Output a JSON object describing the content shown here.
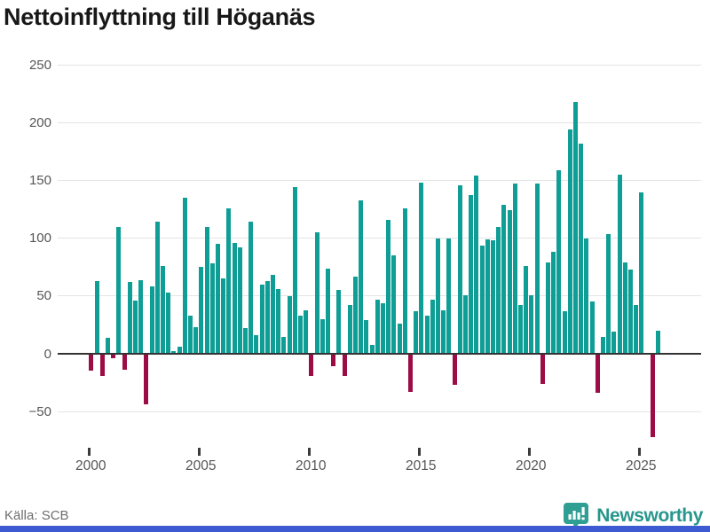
{
  "header": {
    "title": "Nettoinflyttning till Höganäs"
  },
  "footer": {
    "source": "Källa: SCB",
    "brand_name": "Newsworthy",
    "brand_badge_color": "#2f9e93",
    "brand_text_color": "#27968c",
    "bottom_strip_color": "#3d5ad3"
  },
  "chart_data": {
    "type": "bar",
    "title": "Nettoinflyttning till Höganäs",
    "x_unit": "quarter",
    "x_start": "2000 Q1",
    "x_end": "2025 Q4",
    "x_tick_labels": [
      "2000",
      "2005",
      "2010",
      "2015",
      "2020",
      "2025"
    ],
    "y_tick_labels": [
      "250",
      "200",
      "150",
      "100",
      "50",
      "0",
      "−50"
    ],
    "y_tick_values": [
      250,
      200,
      150,
      100,
      50,
      0,
      -50
    ],
    "ylim": [
      -79,
      258
    ],
    "grid": true,
    "positive_color": "#0f9e96",
    "negative_color": "#9c0d46",
    "values": [
      -14,
      63,
      -18,
      14,
      -3,
      110,
      -13,
      62,
      46,
      64,
      -43,
      58,
      114,
      76,
      53,
      2,
      6,
      135,
      33,
      23,
      75,
      110,
      78,
      95,
      65,
      126,
      96,
      92,
      22,
      114,
      16,
      60,
      63,
      68,
      56,
      15,
      50,
      144,
      33,
      38,
      -18,
      105,
      30,
      74,
      -10,
      55,
      -18,
      42,
      67,
      133,
      29,
      8,
      47,
      44,
      116,
      85,
      26,
      126,
      -32,
      37,
      148,
      33,
      47,
      100,
      38,
      100,
      -26,
      146,
      51,
      137,
      154,
      94,
      99,
      98,
      110,
      129,
      124,
      147,
      42,
      76,
      51,
      147,
      -25,
      79,
      88,
      159,
      37,
      194,
      218,
      182,
      100,
      45,
      -33,
      15,
      104,
      19,
      155,
      79,
      73,
      42,
      140,
      0,
      -71,
      20
    ]
  }
}
